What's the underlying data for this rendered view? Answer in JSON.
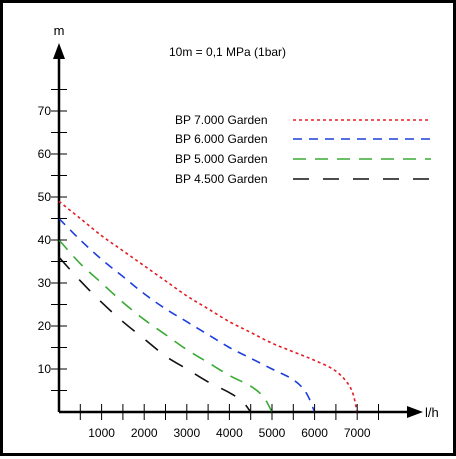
{
  "chart_data": {
    "type": "line",
    "note": "10m = 0,1 MPa (1bar)",
    "xlabel": "l/h",
    "ylabel": "m",
    "xlim": [
      0,
      7600
    ],
    "ylim": [
      0,
      80
    ],
    "x_ticks": [
      1000,
      2000,
      3000,
      4000,
      5000,
      6000,
      7000
    ],
    "y_ticks": [
      10,
      20,
      30,
      40,
      50,
      60,
      70
    ],
    "legend_position": "top-right",
    "series": [
      {
        "name": "BP 7.000 Garden",
        "color": "#e31e24",
        "dash": "dotted",
        "x": [
          0,
          500,
          1000,
          1500,
          2000,
          2500,
          3000,
          3500,
          4000,
          4500,
          5000,
          5500,
          6000,
          6500,
          6850,
          7000
        ],
        "y": [
          49,
          45,
          41,
          37.5,
          34,
          30.5,
          27,
          24,
          21,
          18.5,
          16,
          14,
          12,
          9.5,
          5.5,
          0
        ]
      },
      {
        "name": "BP 6.000 Garden",
        "color": "#1d3fdc",
        "dash": "dashed",
        "x": [
          0,
          500,
          1000,
          1500,
          2000,
          2500,
          3000,
          3500,
          4000,
          4500,
          5000,
          5500,
          5800,
          6000
        ],
        "y": [
          45,
          40,
          35.5,
          31.5,
          27.5,
          24,
          21,
          18,
          15,
          12.5,
          10,
          7.5,
          4.5,
          0
        ]
      },
      {
        "name": "BP 5.000 Garden",
        "color": "#3aaa35",
        "dash": "long-dash",
        "x": [
          0,
          500,
          1000,
          1500,
          2000,
          2500,
          3000,
          3500,
          4000,
          4500,
          4800,
          5000
        ],
        "y": [
          40,
          34.5,
          30,
          25.5,
          21.5,
          18,
          14.5,
          11.5,
          8.5,
          6,
          3.5,
          0
        ]
      },
      {
        "name": "BP 4.500 Garden",
        "color": "#111111",
        "dash": "long-dash-gap",
        "x": [
          0,
          500,
          1000,
          1500,
          2000,
          2500,
          3000,
          3500,
          4000,
          4300,
          4500
        ],
        "y": [
          36,
          30.5,
          25.5,
          21,
          17,
          13,
          10,
          7,
          4.5,
          2.5,
          0
        ]
      }
    ]
  }
}
